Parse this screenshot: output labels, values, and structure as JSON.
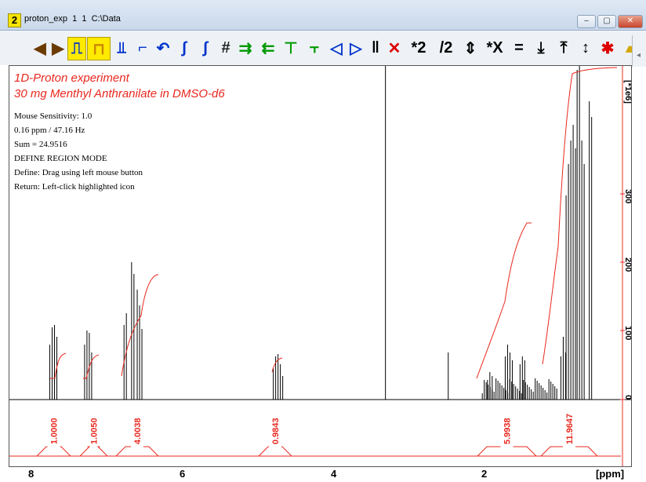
{
  "window": {
    "badge": "2",
    "title": "proton_exp  1  1  C:\\Data",
    "buttons": {
      "minimize": "‒",
      "maximize": "▢",
      "close": "✕"
    }
  },
  "toolbar": [
    {
      "name": "move-left-icon",
      "glyph": "◀",
      "color": "#6b3b00",
      "selected": false
    },
    {
      "name": "move-right-icon",
      "glyph": "▶",
      "color": "#6b3b00",
      "selected": false
    },
    {
      "name": "define-region-icon",
      "glyph": "⎍",
      "color": "#0033cc",
      "selected": true
    },
    {
      "name": "region-bracket-icon",
      "glyph": "⊓",
      "color": "#cc8800",
      "selected": true
    },
    {
      "name": "baseline-point-icon",
      "glyph": "⫫",
      "color": "#0033cc",
      "selected": false
    },
    {
      "name": "step-edge-icon",
      "glyph": "⌐",
      "color": "#0033cc",
      "selected": false
    },
    {
      "name": "undo-icon",
      "glyph": "↶",
      "color": "#0033cc",
      "selected": false
    },
    {
      "name": "integral-b-icon",
      "glyph": "∫",
      "color": "#0033cc",
      "selected": false
    },
    {
      "name": "integral-s-icon",
      "glyph": "∫",
      "color": "#0033cc",
      "selected": false
    },
    {
      "name": "grid-hash-icon",
      "glyph": "#",
      "color": "#222",
      "selected": false
    },
    {
      "name": "shift-left-icon",
      "glyph": "⇉",
      "color": "#009900",
      "selected": false
    },
    {
      "name": "shift-right-icon",
      "glyph": "⇇",
      "color": "#009900",
      "selected": false
    },
    {
      "name": "bracket-green-icon",
      "glyph": "⊤",
      "color": "#009900",
      "selected": false
    },
    {
      "name": "bracket-dual-icon",
      "glyph": "⫟",
      "color": "#009900",
      "selected": false
    },
    {
      "name": "slope-left-icon",
      "glyph": "◁",
      "color": "#0033cc",
      "selected": false
    },
    {
      "name": "slope-right-icon",
      "glyph": "▷",
      "color": "#0033cc",
      "selected": false
    },
    {
      "name": "pause-icon",
      "glyph": "‖",
      "color": "#000",
      "selected": false
    },
    {
      "name": "delete-red-icon",
      "glyph": "✕",
      "color": "#dd0000",
      "selected": false
    },
    {
      "name": "times-two-icon",
      "glyph": "*2",
      "color": "#000",
      "selected": false
    },
    {
      "name": "divide-two-icon",
      "glyph": "/2",
      "color": "#000",
      "selected": false
    },
    {
      "name": "up-down-icon",
      "glyph": "⇕",
      "color": "#000",
      "selected": false
    },
    {
      "name": "times-x-icon",
      "glyph": "*X",
      "color": "#000",
      "selected": false
    },
    {
      "name": "equals-icon",
      "glyph": "=",
      "color": "#000",
      "selected": false
    },
    {
      "name": "down-arrow-bar-icon",
      "glyph": "⤓",
      "color": "#000",
      "selected": false
    },
    {
      "name": "up-arrow-bar-icon",
      "glyph": "⤒",
      "color": "#000",
      "selected": false
    },
    {
      "name": "vertical-arrows-icon",
      "glyph": "↕",
      "color": "#000",
      "selected": false
    },
    {
      "name": "cut-red-icon",
      "glyph": "✱",
      "color": "#dd0000",
      "selected": false
    },
    {
      "name": "save-folder-icon",
      "glyph": "▰",
      "color": "#d4a800",
      "selected": false
    }
  ],
  "spectrum": {
    "caption_1": "1D-Proton experiment",
    "caption_2": "30 mg Menthyl Anthranilate in DMSO-d6",
    "info": [
      "Mouse Sensitivity: 1.0",
      "0.16 ppm / 47.16 Hz",
      "Sum = 24.9516",
      "DEFINE REGION MODE",
      "Define: Drag using left mouse button",
      "Return: Left-click highlighted icon"
    ],
    "integrals": [
      "1.0000",
      "1.0050",
      "4.0038",
      "0.9843",
      "5.9938",
      "11.9647"
    ],
    "x_ticks": [
      "8",
      "6",
      "4",
      "2"
    ],
    "x_unit": "[ppm]",
    "y_ticks": [
      "0",
      "100",
      "200",
      "300"
    ],
    "y_unit": "[*1e6]",
    "colors": {
      "spectrum": "#000000",
      "integral": "#e8281e",
      "label": "#e8281e"
    }
  }
}
